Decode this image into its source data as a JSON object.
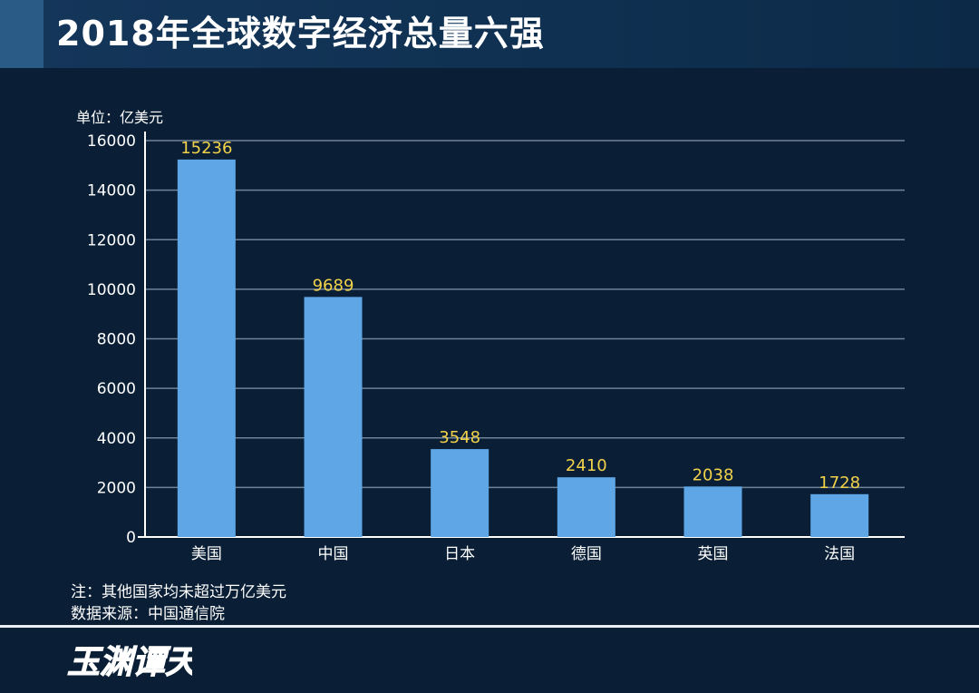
{
  "header": {
    "title": "2018年全球数字经济总量六强"
  },
  "unit_label": "单位：亿美元",
  "notes": {
    "note": "注：其他国家均未超过万亿美元",
    "source": "数据来源：中国通信院"
  },
  "signature": {
    "text": "玉渊谭天"
  },
  "colors": {
    "background": "#0a1f36",
    "bar": "#5ea6e6",
    "value_label": "#f2d24a",
    "grid": "#6f8296",
    "text": "#ffffff"
  },
  "chart_data": {
    "type": "bar",
    "categories": [
      "美国",
      "中国",
      "日本",
      "德国",
      "英国",
      "法国"
    ],
    "values": [
      15236,
      9689,
      3548,
      2410,
      2038,
      1728
    ],
    "title": "2018年全球数字经济总量六强",
    "xlabel": "",
    "ylabel": "单位：亿美元",
    "ylim": [
      0,
      16000
    ],
    "yticks": [
      0,
      2000,
      4000,
      6000,
      8000,
      10000,
      12000,
      14000,
      16000
    ],
    "grid": true,
    "legend": "none"
  }
}
